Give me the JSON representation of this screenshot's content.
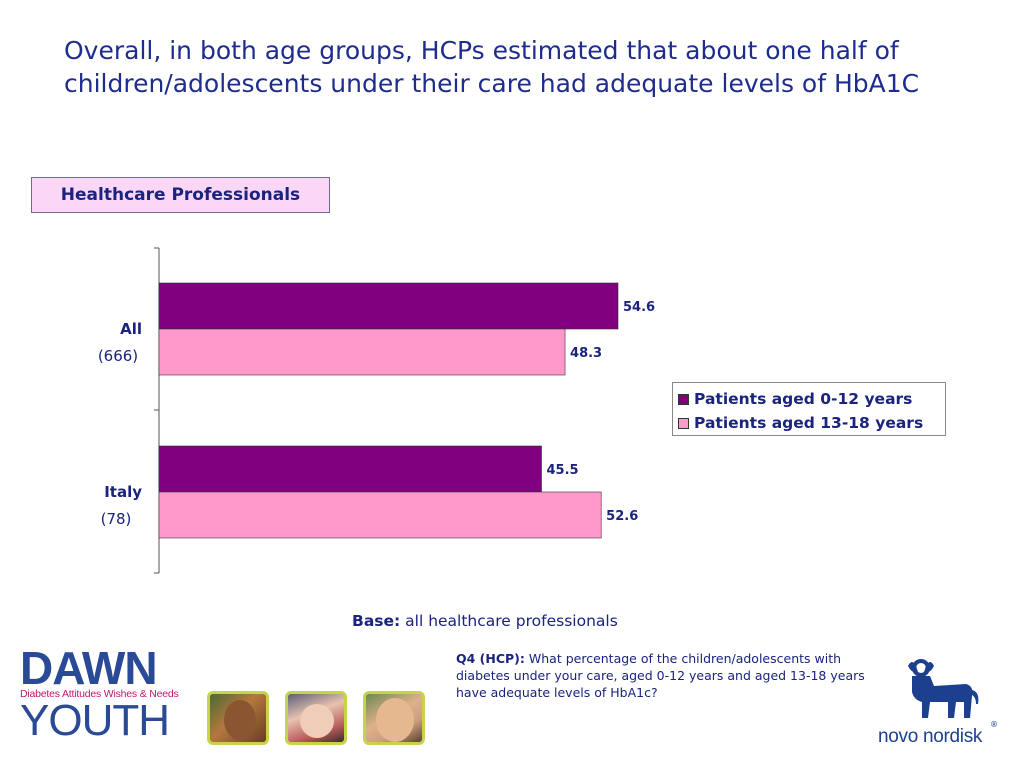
{
  "slide": {
    "title": "Overall, in both age groups, HCPs estimated that about one half of children/adolescents under their care had adequate levels of HbA1C",
    "respondent_box": "Healthcare Professionals",
    "base_label": "Base:",
    "base_text": "all healthcare professionals",
    "question_label": "Q4 (HCP):",
    "question_text": "What percentage of the children/adolescents with diabetes under your care, aged 0-12 years and aged 13-18 years have adequate levels of HbA1c?"
  },
  "logos": {
    "dawn_word": "DAWN",
    "dawn_tagline": "Diabetes Attitudes Wishes & Needs",
    "youth_word": "YOUTH",
    "novo_text": "novo nordisk",
    "novo_reg": "®"
  },
  "chart_data": {
    "type": "bar",
    "orientation": "horizontal",
    "categories": [
      "All",
      "Italy"
    ],
    "category_sublabels": [
      "(666)",
      "(78)"
    ],
    "series": [
      {
        "name": "Patients aged 0-12 years",
        "color": "#800080",
        "values": [
          54.6,
          45.5
        ]
      },
      {
        "name": "Patients aged 13-18 years",
        "color": "#ff99cc",
        "values": [
          48.3,
          52.6
        ]
      }
    ],
    "xlim": [
      0,
      100
    ],
    "legend_position": "right",
    "grid": false,
    "data_labels": true
  }
}
